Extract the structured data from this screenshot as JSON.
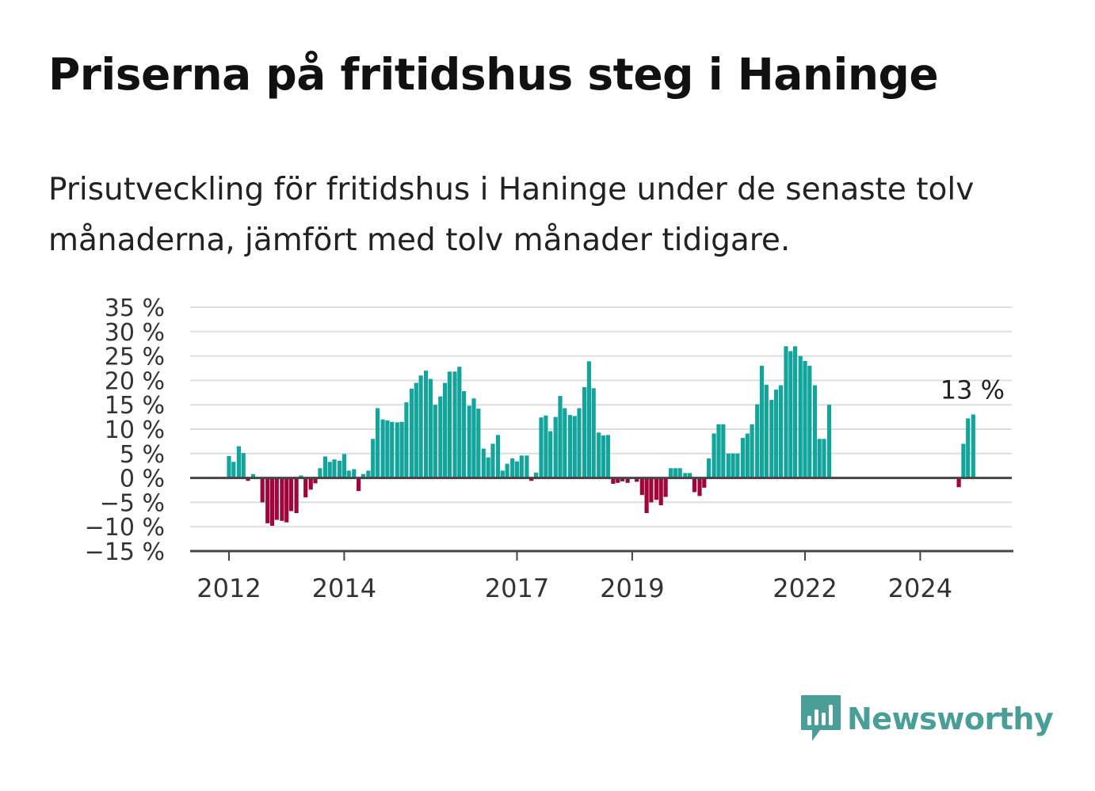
{
  "title": "Priserna på fritidshus steg i Haninge",
  "subtitle": "Prisutveckling för fritidshus i Haninge under de senaste tolv månaderna, jämfört med tolv månader tidigare.",
  "brand": {
    "name": "Newsworthy",
    "icon": "newsworthy-logo-icon"
  },
  "colors": {
    "positive": "#13a59c",
    "negative": "#a0063c",
    "grid": "#dddddd",
    "axis": "#444444"
  },
  "chart_data": {
    "type": "bar",
    "ylim": [
      -15,
      35
    ],
    "yticks": [
      35,
      30,
      25,
      20,
      15,
      10,
      5,
      0,
      -5,
      -10,
      -15
    ],
    "ytick_labels": [
      "35 %",
      "30 %",
      "25 %",
      "20 %",
      "15 %",
      "10 %",
      "5 %",
      "0 %",
      "−5 %",
      "−10 %",
      "−15 %"
    ],
    "xticks": [
      {
        "label": "2012",
        "x": 2012.0
      },
      {
        "label": "2014",
        "x": 2014.0
      },
      {
        "label": "2017",
        "x": 2017.0
      },
      {
        "label": "2019",
        "x": 2019.0
      },
      {
        "label": "2022",
        "x": 2022.0
      },
      {
        "label": "2024",
        "x": 2024.0
      }
    ],
    "annotation": {
      "text": "13 %",
      "x": 2024.92,
      "y": 13
    },
    "grid": true,
    "series": [
      {
        "x": 2012.0,
        "y": 4.5
      },
      {
        "x": 2012.08,
        "y": 3.3
      },
      {
        "x": 2012.17,
        "y": 6.5
      },
      {
        "x": 2012.25,
        "y": 5.1
      },
      {
        "x": 2012.33,
        "y": -0.6
      },
      {
        "x": 2012.42,
        "y": 0.8
      },
      {
        "x": 2012.5,
        "y": 0.0
      },
      {
        "x": 2012.58,
        "y": -5.0
      },
      {
        "x": 2012.67,
        "y": -9.3
      },
      {
        "x": 2012.75,
        "y": -9.8
      },
      {
        "x": 2012.83,
        "y": -8.6
      },
      {
        "x": 2012.92,
        "y": -8.8
      },
      {
        "x": 2013.0,
        "y": -9.1
      },
      {
        "x": 2013.08,
        "y": -6.8
      },
      {
        "x": 2013.17,
        "y": -7.2
      },
      {
        "x": 2013.25,
        "y": 0.5
      },
      {
        "x": 2013.33,
        "y": -4.0
      },
      {
        "x": 2013.42,
        "y": -2.4
      },
      {
        "x": 2013.5,
        "y": -1.1
      },
      {
        "x": 2013.58,
        "y": 2.0
      },
      {
        "x": 2013.67,
        "y": 4.4
      },
      {
        "x": 2013.75,
        "y": 3.3
      },
      {
        "x": 2013.83,
        "y": 3.8
      },
      {
        "x": 2013.92,
        "y": 3.5
      },
      {
        "x": 2014.0,
        "y": 4.9
      },
      {
        "x": 2014.08,
        "y": 1.5
      },
      {
        "x": 2014.17,
        "y": 1.8
      },
      {
        "x": 2014.25,
        "y": -2.7
      },
      {
        "x": 2014.33,
        "y": 0.8
      },
      {
        "x": 2014.42,
        "y": 1.5
      },
      {
        "x": 2014.5,
        "y": 8.0
      },
      {
        "x": 2014.58,
        "y": 14.3
      },
      {
        "x": 2014.67,
        "y": 12.0
      },
      {
        "x": 2014.75,
        "y": 11.8
      },
      {
        "x": 2014.83,
        "y": 11.5
      },
      {
        "x": 2014.92,
        "y": 11.4
      },
      {
        "x": 2015.0,
        "y": 11.5
      },
      {
        "x": 2015.08,
        "y": 15.5
      },
      {
        "x": 2015.17,
        "y": 18.3
      },
      {
        "x": 2015.25,
        "y": 19.5
      },
      {
        "x": 2015.33,
        "y": 21.0
      },
      {
        "x": 2015.42,
        "y": 22.0
      },
      {
        "x": 2015.5,
        "y": 20.3
      },
      {
        "x": 2015.58,
        "y": 15.0
      },
      {
        "x": 2015.67,
        "y": 16.7
      },
      {
        "x": 2015.75,
        "y": 19.5
      },
      {
        "x": 2015.83,
        "y": 21.8
      },
      {
        "x": 2015.92,
        "y": 21.8
      },
      {
        "x": 2016.0,
        "y": 22.8
      },
      {
        "x": 2016.08,
        "y": 17.8
      },
      {
        "x": 2016.17,
        "y": 14.8
      },
      {
        "x": 2016.25,
        "y": 16.3
      },
      {
        "x": 2016.33,
        "y": 14.2
      },
      {
        "x": 2016.42,
        "y": 6.0
      },
      {
        "x": 2016.5,
        "y": 4.2
      },
      {
        "x": 2016.58,
        "y": 7.0
      },
      {
        "x": 2016.67,
        "y": 8.8
      },
      {
        "x": 2016.75,
        "y": 1.5
      },
      {
        "x": 2016.83,
        "y": 2.9
      },
      {
        "x": 2016.92,
        "y": 4.0
      },
      {
        "x": 2017.0,
        "y": 3.4
      },
      {
        "x": 2017.08,
        "y": 4.6
      },
      {
        "x": 2017.17,
        "y": 4.6
      },
      {
        "x": 2017.25,
        "y": -0.6
      },
      {
        "x": 2017.33,
        "y": 1.1
      },
      {
        "x": 2017.42,
        "y": 12.4
      },
      {
        "x": 2017.5,
        "y": 12.8
      },
      {
        "x": 2017.58,
        "y": 9.6
      },
      {
        "x": 2017.67,
        "y": 12.5
      },
      {
        "x": 2017.75,
        "y": 16.8
      },
      {
        "x": 2017.83,
        "y": 14.3
      },
      {
        "x": 2017.92,
        "y": 12.9
      },
      {
        "x": 2018.0,
        "y": 12.7
      },
      {
        "x": 2018.08,
        "y": 14.3
      },
      {
        "x": 2018.17,
        "y": 18.6
      },
      {
        "x": 2018.25,
        "y": 23.9
      },
      {
        "x": 2018.33,
        "y": 18.4
      },
      {
        "x": 2018.42,
        "y": 9.3
      },
      {
        "x": 2018.5,
        "y": 8.7
      },
      {
        "x": 2018.58,
        "y": 8.8
      },
      {
        "x": 2018.67,
        "y": -1.2
      },
      {
        "x": 2018.75,
        "y": -1.0
      },
      {
        "x": 2018.83,
        "y": -0.7
      },
      {
        "x": 2018.92,
        "y": -1.0
      },
      {
        "x": 2019.0,
        "y": 0.0
      },
      {
        "x": 2019.08,
        "y": -0.8
      },
      {
        "x": 2019.17,
        "y": -3.5
      },
      {
        "x": 2019.25,
        "y": -7.2
      },
      {
        "x": 2019.33,
        "y": -5.0
      },
      {
        "x": 2019.42,
        "y": -4.5
      },
      {
        "x": 2019.5,
        "y": -5.6
      },
      {
        "x": 2019.58,
        "y": -3.9
      },
      {
        "x": 2019.67,
        "y": 2.0
      },
      {
        "x": 2019.75,
        "y": 2.0
      },
      {
        "x": 2019.83,
        "y": 2.0
      },
      {
        "x": 2019.92,
        "y": 1.0
      },
      {
        "x": 2020.0,
        "y": 1.0
      },
      {
        "x": 2020.08,
        "y": -2.9
      },
      {
        "x": 2020.17,
        "y": -3.7
      },
      {
        "x": 2020.25,
        "y": -2.0
      },
      {
        "x": 2020.33,
        "y": 4.0
      },
      {
        "x": 2020.42,
        "y": 9.1
      },
      {
        "x": 2020.5,
        "y": 11.0
      },
      {
        "x": 2020.58,
        "y": 11.0
      },
      {
        "x": 2020.67,
        "y": 5.0
      },
      {
        "x": 2020.75,
        "y": 5.0
      },
      {
        "x": 2020.83,
        "y": 5.0
      },
      {
        "x": 2020.92,
        "y": 8.2
      },
      {
        "x": 2021.0,
        "y": 9.1
      },
      {
        "x": 2021.08,
        "y": 11.0
      },
      {
        "x": 2021.17,
        "y": 15.1
      },
      {
        "x": 2021.25,
        "y": 23.0
      },
      {
        "x": 2021.33,
        "y": 19.1
      },
      {
        "x": 2021.42,
        "y": 16.0
      },
      {
        "x": 2021.5,
        "y": 18.1
      },
      {
        "x": 2021.58,
        "y": 19.0
      },
      {
        "x": 2021.67,
        "y": 27.0
      },
      {
        "x": 2021.75,
        "y": 26.0
      },
      {
        "x": 2021.83,
        "y": 27.0
      },
      {
        "x": 2021.92,
        "y": 25.0
      },
      {
        "x": 2022.0,
        "y": 24.0
      },
      {
        "x": 2022.08,
        "y": 23.0
      },
      {
        "x": 2022.17,
        "y": 19.0
      },
      {
        "x": 2022.25,
        "y": 8.0
      },
      {
        "x": 2022.33,
        "y": 8.0
      },
      {
        "x": 2022.42,
        "y": 15.0
      },
      {
        "x": 2024.67,
        "y": -1.9
      },
      {
        "x": 2024.75,
        "y": 7.0
      },
      {
        "x": 2024.83,
        "y": 12.2
      },
      {
        "x": 2024.92,
        "y": 13.0
      }
    ]
  }
}
